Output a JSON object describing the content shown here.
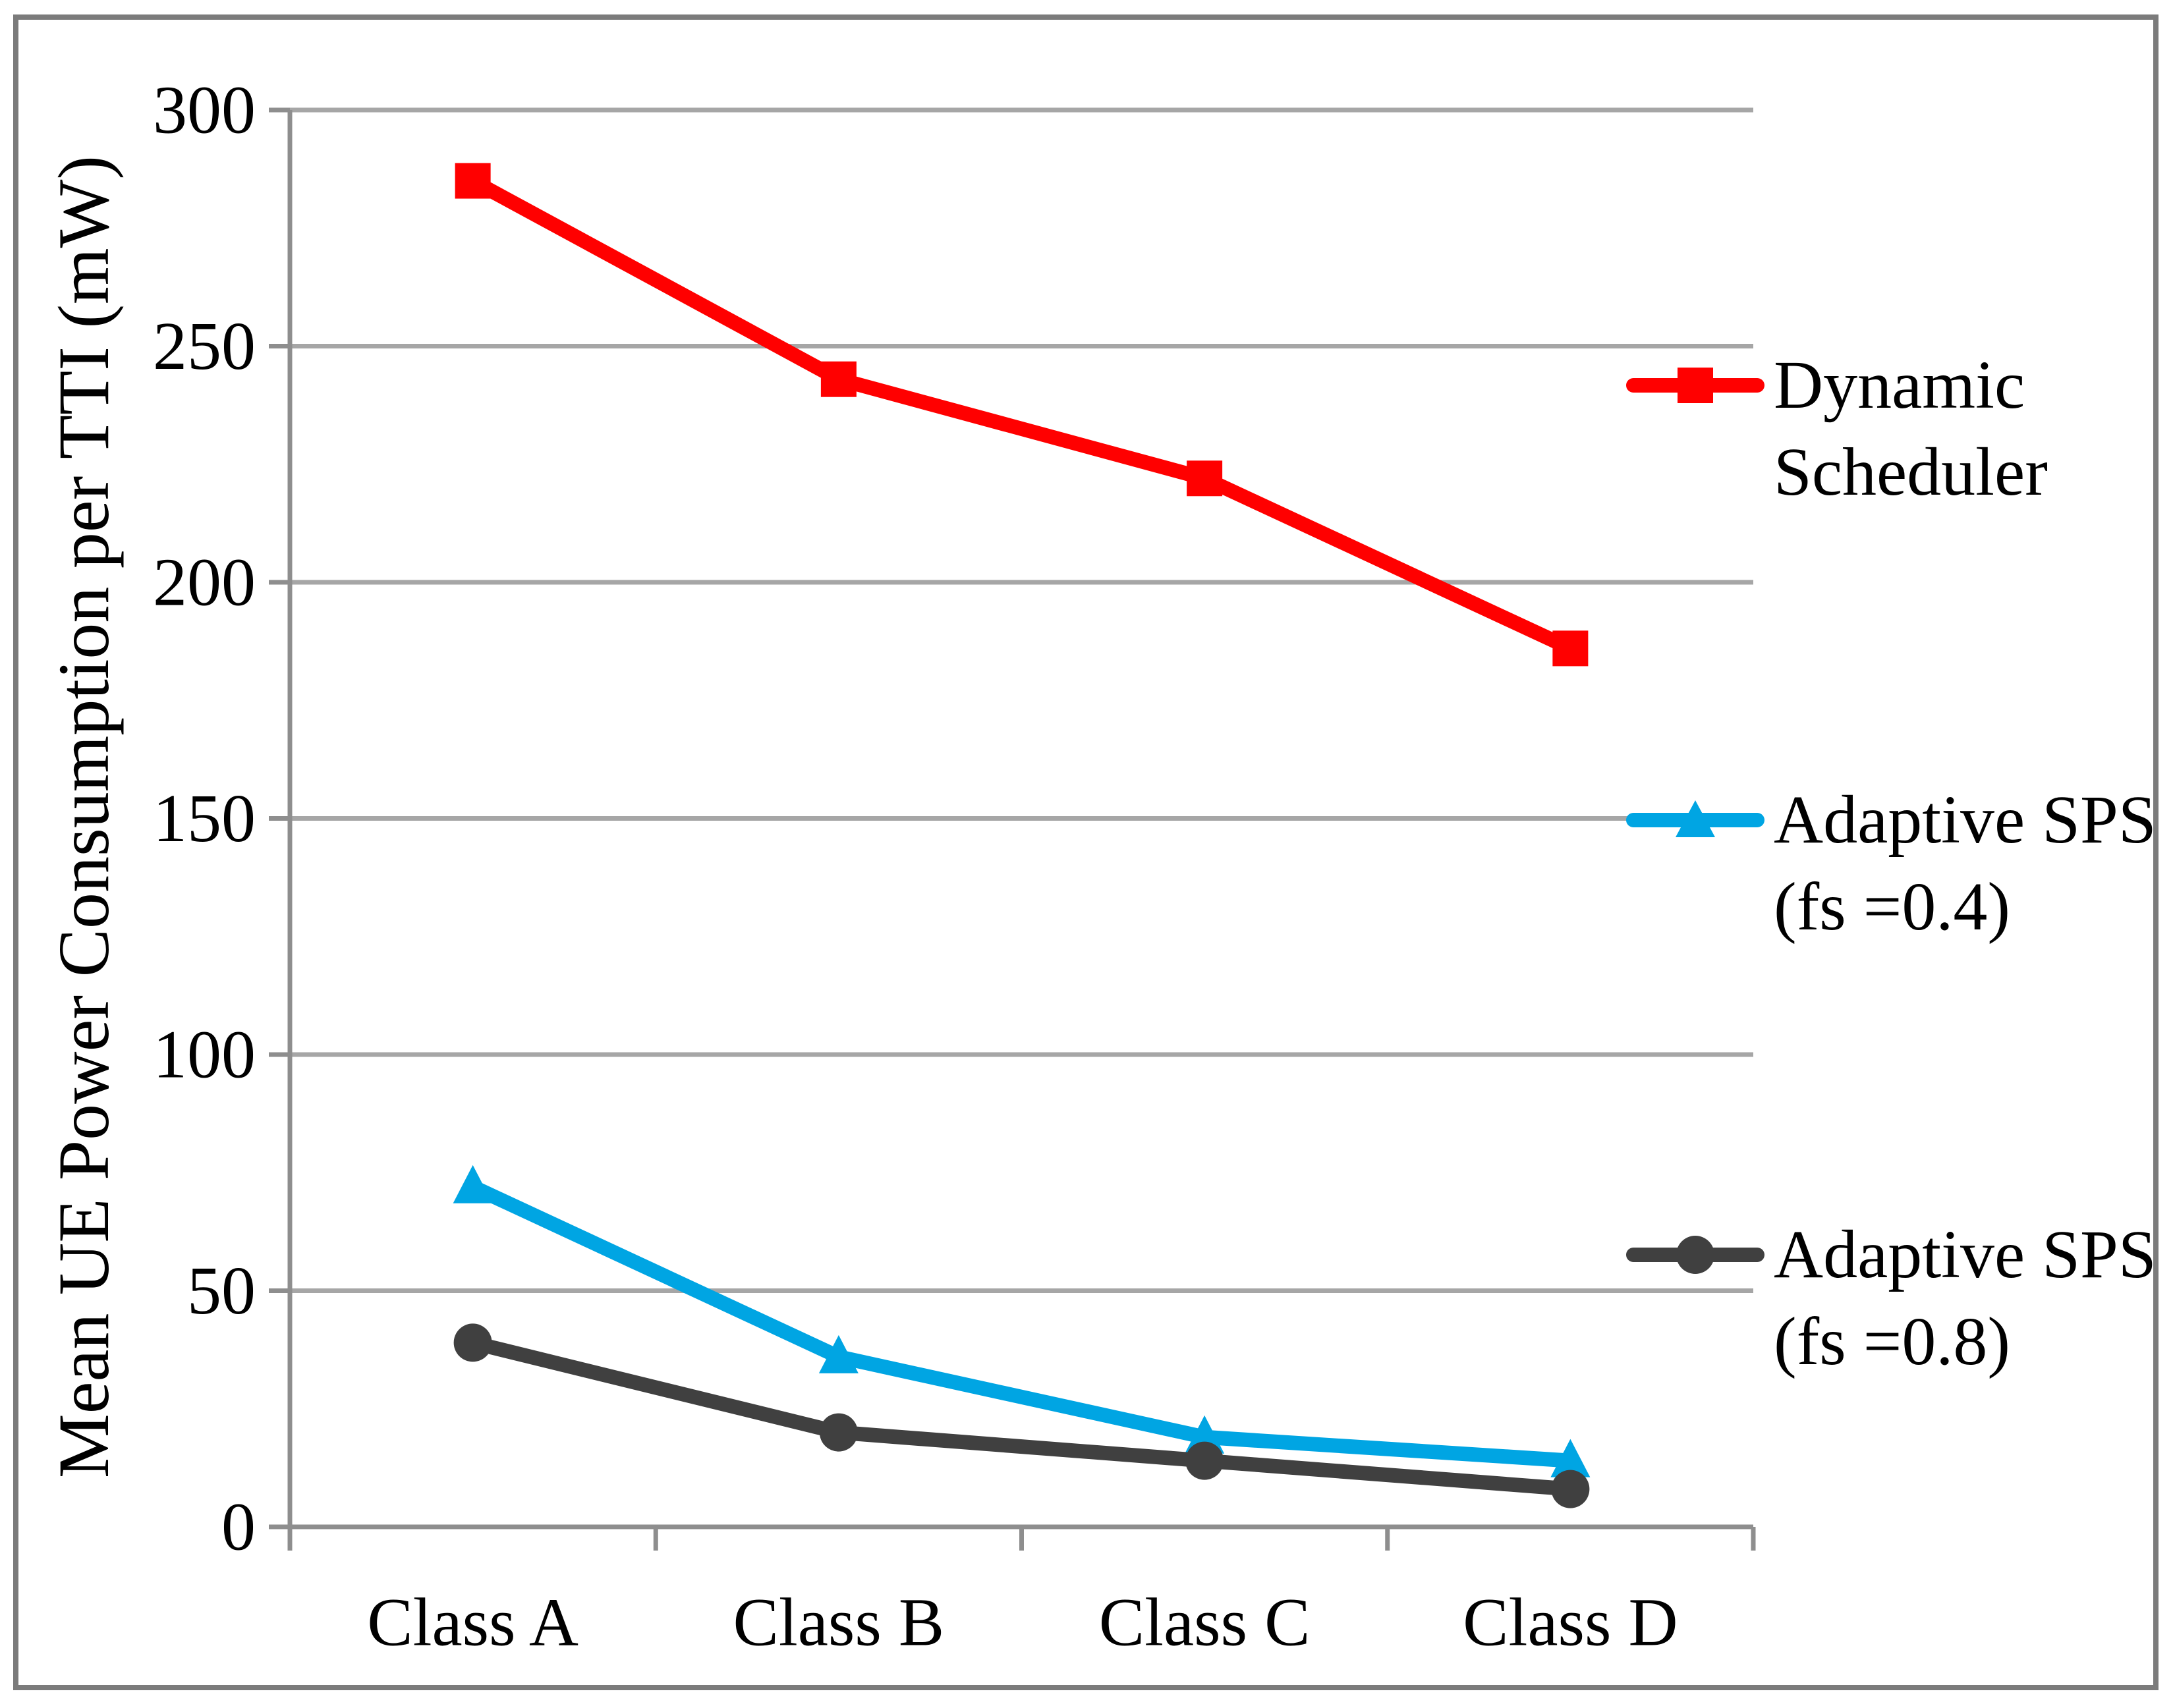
{
  "chart_data": {
    "type": "line",
    "title": "",
    "categories": [
      "Class A",
      "Class B",
      "Class C",
      "Class D"
    ],
    "series": [
      {
        "name": "Dynamic Scheduler",
        "color": "#FF0000",
        "marker": "square",
        "values": [
          285,
          243,
          222,
          186
        ]
      },
      {
        "name": "Adaptive SPS (fs =0.4)",
        "color": "#00A5E3",
        "marker": "triangle",
        "values": [
          72,
          36,
          19,
          14
        ]
      },
      {
        "name": "Adaptive SPS (fs =0.8)",
        "color": "#404040",
        "marker": "circle",
        "values": [
          39,
          20,
          14,
          8
        ]
      }
    ],
    "xlabel": "",
    "ylabel": "Mean UE Power Consumption per TTI (mW)",
    "ylim": [
      0,
      300
    ],
    "y_ticks": [
      0,
      50,
      100,
      150,
      200,
      250,
      300
    ],
    "grid": "horizontal",
    "legend_position": "right",
    "gridline_color": "#A6A6A6",
    "axis_color": "#8E8E8E",
    "border_color": "#7B7B7B",
    "text_color": "#000000"
  },
  "legend": {
    "entries": [
      {
        "lines": [
          "Dynamic",
          "Scheduler"
        ],
        "marker": "square",
        "color": "#FF0000"
      },
      {
        "lines": [
          "Adaptive SPS",
          "(fs =0.4)"
        ],
        "marker": "triangle",
        "color": "#00A5E3"
      },
      {
        "lines": [
          "Adaptive SPS",
          "(fs =0.8)"
        ],
        "marker": "circle",
        "color": "#404040"
      }
    ]
  }
}
